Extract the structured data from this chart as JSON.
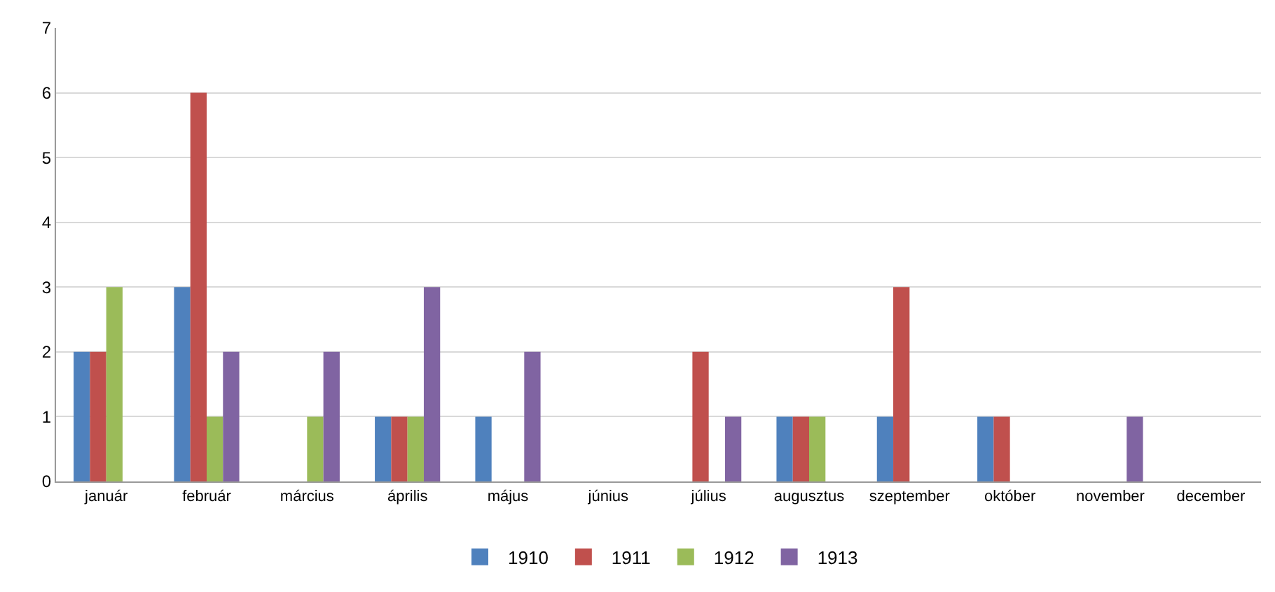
{
  "chart_data": {
    "type": "bar",
    "categories": [
      "január",
      "február",
      "március",
      "április",
      "május",
      "június",
      "július",
      "augusztus",
      "szeptember",
      "október",
      "november",
      "december"
    ],
    "series": [
      {
        "name": "1910",
        "color": "#4f81bd",
        "values": [
          2,
          3,
          null,
          1,
          1,
          null,
          null,
          1,
          1,
          1,
          null,
          null
        ]
      },
      {
        "name": "1911",
        "color": "#c0504d",
        "values": [
          2,
          6,
          null,
          1,
          null,
          null,
          2,
          1,
          3,
          1,
          null,
          null
        ]
      },
      {
        "name": "1912",
        "color": "#9bbb59",
        "values": [
          3,
          1,
          1,
          1,
          null,
          null,
          null,
          1,
          null,
          null,
          null,
          null
        ]
      },
      {
        "name": "1913",
        "color": "#8064a2",
        "values": [
          null,
          2,
          2,
          3,
          2,
          null,
          1,
          null,
          null,
          null,
          1,
          null
        ]
      }
    ],
    "ylim": [
      0,
      7
    ],
    "yticks": [
      0,
      1,
      2,
      3,
      4,
      5,
      6,
      7
    ],
    "grid": "y",
    "legend": "bottom"
  }
}
